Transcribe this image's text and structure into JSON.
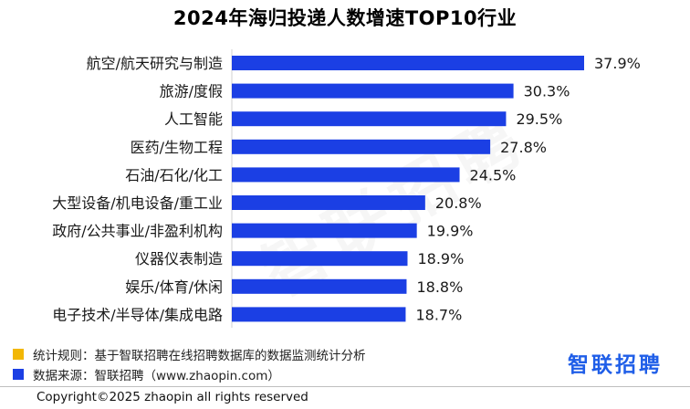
{
  "title": "2024年海归投递人数增速TOP10行业",
  "colors": {
    "bar": "#1b3fe4",
    "rule_square": "#f2b705",
    "source_square": "#1b3fe4",
    "brand": "#1f5ee8"
  },
  "chart_data": {
    "type": "bar",
    "orientation": "horizontal",
    "categories": [
      "航空/航天研究与制造",
      "旅游/度假",
      "人工智能",
      "医药/生物工程",
      "石油/石化/化工",
      "大型设备/机电设备/重工业",
      "政府/公共事业/非盈利机构",
      "仪器仪表制造",
      "娱乐/体育/休闲",
      "电子技术/半导体/集成电路"
    ],
    "values": [
      37.9,
      30.3,
      29.5,
      27.8,
      24.5,
      20.8,
      19.9,
      18.9,
      18.8,
      18.7
    ],
    "value_labels": [
      "37.9%",
      "30.3%",
      "29.5%",
      "27.8%",
      "24.5%",
      "20.8%",
      "19.9%",
      "18.9%",
      "18.8%",
      "18.7%"
    ],
    "title": "2024年海归投递人数增速TOP10行业",
    "xlabel": "",
    "ylabel": "",
    "xlim": [
      0,
      37.9
    ],
    "grid": false
  },
  "legend": {
    "rule": "统计规则：基于智联招聘在线招聘数据库的数据监测统计分析",
    "source": "数据来源：智联招聘（www.zhaopin.com）"
  },
  "brand": "智联招聘",
  "watermark": "智联招聘",
  "copyright": "Copyright©2025 zhaopin all rights reserved"
}
